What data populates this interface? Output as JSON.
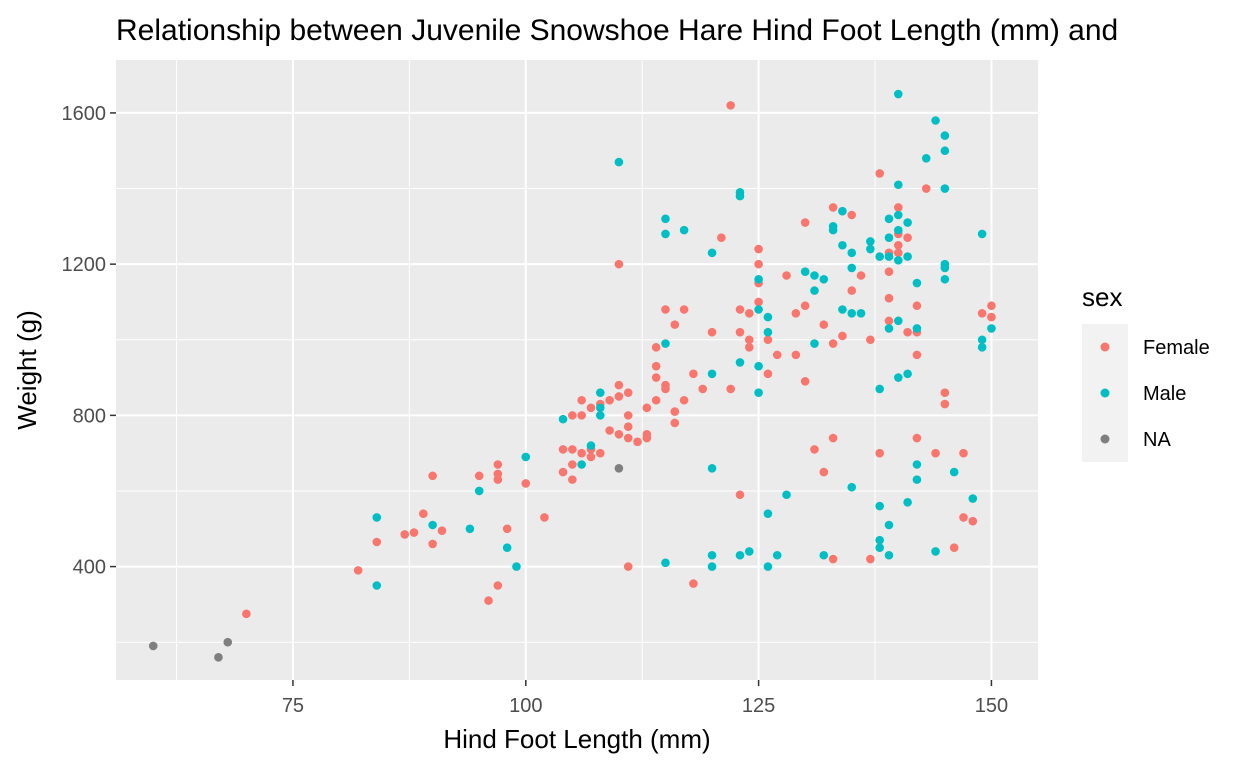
{
  "chart_data": {
    "type": "scatter",
    "title": "Relationship between Juvenile Snowshoe Hare Hind Foot Length (mm) and",
    "xlabel": "Hind Foot Length (mm)",
    "ylabel": "Weight (g)",
    "xlim": [
      56,
      155
    ],
    "ylim": [
      100,
      1740
    ],
    "x_ticks": [
      75,
      100,
      125,
      150
    ],
    "y_ticks": [
      400,
      800,
      1200,
      1600
    ],
    "x_minor": [
      62.5,
      87.5,
      112.5,
      137.5
    ],
    "y_minor": [
      200,
      600,
      1000,
      1400
    ],
    "grid": true,
    "legend": {
      "title": "sex",
      "position": "right"
    },
    "series": [
      {
        "name": "Female",
        "color": "#F8766D",
        "points": [
          [
            70,
            275
          ],
          [
            82,
            390
          ],
          [
            84,
            465
          ],
          [
            87,
            485
          ],
          [
            88,
            490
          ],
          [
            89,
            540
          ],
          [
            90,
            640
          ],
          [
            90,
            460
          ],
          [
            91,
            495
          ],
          [
            95,
            640
          ],
          [
            96,
            310
          ],
          [
            97,
            645
          ],
          [
            97,
            670
          ],
          [
            97,
            630
          ],
          [
            97,
            350
          ],
          [
            98,
            500
          ],
          [
            100,
            620
          ],
          [
            102,
            530
          ],
          [
            104,
            650
          ],
          [
            104,
            710
          ],
          [
            105,
            670
          ],
          [
            105,
            630
          ],
          [
            105,
            710
          ],
          [
            105,
            800
          ],
          [
            106,
            700
          ],
          [
            106,
            800
          ],
          [
            106,
            840
          ],
          [
            107,
            820
          ],
          [
            107,
            710
          ],
          [
            107,
            690
          ],
          [
            108,
            700
          ],
          [
            108,
            830
          ],
          [
            109,
            760
          ],
          [
            109,
            840
          ],
          [
            110,
            880
          ],
          [
            110,
            850
          ],
          [
            110,
            750
          ],
          [
            110,
            1200
          ],
          [
            111,
            800
          ],
          [
            111,
            770
          ],
          [
            111,
            740
          ],
          [
            111,
            860
          ],
          [
            111,
            400
          ],
          [
            112,
            730
          ],
          [
            113,
            740
          ],
          [
            113,
            750
          ],
          [
            113,
            820
          ],
          [
            114,
            980
          ],
          [
            114,
            930
          ],
          [
            114,
            900
          ],
          [
            114,
            840
          ],
          [
            115,
            880
          ],
          [
            115,
            870
          ],
          [
            115,
            1080
          ],
          [
            116,
            780
          ],
          [
            116,
            810
          ],
          [
            116,
            1040
          ],
          [
            117,
            1080
          ],
          [
            117,
            840
          ],
          [
            118,
            910
          ],
          [
            118,
            355
          ],
          [
            119,
            870
          ],
          [
            120,
            1020
          ],
          [
            121,
            1270
          ],
          [
            122,
            870
          ],
          [
            122,
            1620
          ],
          [
            123,
            1080
          ],
          [
            123,
            1020
          ],
          [
            123,
            590
          ],
          [
            124,
            1070
          ],
          [
            124,
            1000
          ],
          [
            124,
            980
          ],
          [
            125,
            1100
          ],
          [
            125,
            1150
          ],
          [
            125,
            1200
          ],
          [
            125,
            1240
          ],
          [
            126,
            910
          ],
          [
            126,
            1000
          ],
          [
            127,
            960
          ],
          [
            128,
            1170
          ],
          [
            129,
            960
          ],
          [
            129,
            1070
          ],
          [
            130,
            1310
          ],
          [
            130,
            1090
          ],
          [
            130,
            890
          ],
          [
            131,
            710
          ],
          [
            132,
            1040
          ],
          [
            132,
            650
          ],
          [
            133,
            1350
          ],
          [
            133,
            990
          ],
          [
            133,
            740
          ],
          [
            133,
            420
          ],
          [
            134,
            1010
          ],
          [
            135,
            1130
          ],
          [
            135,
            1330
          ],
          [
            136,
            1170
          ],
          [
            137,
            1000
          ],
          [
            137,
            420
          ],
          [
            138,
            1440
          ],
          [
            138,
            700
          ],
          [
            139,
            1230
          ],
          [
            139,
            1180
          ],
          [
            139,
            1110
          ],
          [
            139,
            1050
          ],
          [
            140,
            1350
          ],
          [
            140,
            1280
          ],
          [
            140,
            1250
          ],
          [
            140,
            1230
          ],
          [
            141,
            1020
          ],
          [
            141,
            1270
          ],
          [
            142,
            1020
          ],
          [
            142,
            1090
          ],
          [
            142,
            960
          ],
          [
            142,
            740
          ],
          [
            143,
            1400
          ],
          [
            144,
            700
          ],
          [
            145,
            860
          ],
          [
            145,
            830
          ],
          [
            146,
            450
          ],
          [
            147,
            700
          ],
          [
            147,
            530
          ],
          [
            148,
            520
          ],
          [
            149,
            1070
          ],
          [
            150,
            1090
          ],
          [
            150,
            1060
          ]
        ]
      },
      {
        "name": "Male",
        "color": "#00BFC4",
        "points": [
          [
            84,
            530
          ],
          [
            84,
            350
          ],
          [
            90,
            510
          ],
          [
            94,
            500
          ],
          [
            95,
            600
          ],
          [
            98,
            450
          ],
          [
            99,
            400
          ],
          [
            100,
            690
          ],
          [
            104,
            790
          ],
          [
            106,
            670
          ],
          [
            107,
            720
          ],
          [
            108,
            860
          ],
          [
            108,
            800
          ],
          [
            108,
            820
          ],
          [
            110,
            1470
          ],
          [
            115,
            1320
          ],
          [
            115,
            1280
          ],
          [
            115,
            990
          ],
          [
            115,
            410
          ],
          [
            117,
            1290
          ],
          [
            120,
            1230
          ],
          [
            120,
            910
          ],
          [
            120,
            660
          ],
          [
            120,
            430
          ],
          [
            120,
            400
          ],
          [
            123,
            1390
          ],
          [
            123,
            1380
          ],
          [
            123,
            940
          ],
          [
            123,
            430
          ],
          [
            124,
            440
          ],
          [
            125,
            1160
          ],
          [
            125,
            1080
          ],
          [
            125,
            930
          ],
          [
            125,
            860
          ],
          [
            126,
            1060
          ],
          [
            126,
            1020
          ],
          [
            126,
            540
          ],
          [
            126,
            400
          ],
          [
            127,
            430
          ],
          [
            128,
            590
          ],
          [
            130,
            1180
          ],
          [
            131,
            1170
          ],
          [
            131,
            1130
          ],
          [
            131,
            990
          ],
          [
            132,
            1160
          ],
          [
            132,
            430
          ],
          [
            133,
            1300
          ],
          [
            133,
            1290
          ],
          [
            134,
            1340
          ],
          [
            134,
            1250
          ],
          [
            134,
            1080
          ],
          [
            135,
            1230
          ],
          [
            135,
            1190
          ],
          [
            135,
            1070
          ],
          [
            135,
            610
          ],
          [
            136,
            1070
          ],
          [
            137,
            1260
          ],
          [
            137,
            1240
          ],
          [
            138,
            1220
          ],
          [
            138,
            870
          ],
          [
            138,
            560
          ],
          [
            138,
            470
          ],
          [
            138,
            450
          ],
          [
            139,
            1320
          ],
          [
            139,
            1270
          ],
          [
            139,
            1220
          ],
          [
            139,
            1030
          ],
          [
            139,
            510
          ],
          [
            139,
            430
          ],
          [
            140,
            1650
          ],
          [
            140,
            1410
          ],
          [
            140,
            1330
          ],
          [
            140,
            1290
          ],
          [
            140,
            1210
          ],
          [
            140,
            1050
          ],
          [
            140,
            900
          ],
          [
            141,
            1310
          ],
          [
            141,
            1220
          ],
          [
            141,
            910
          ],
          [
            141,
            570
          ],
          [
            142,
            1150
          ],
          [
            142,
            1030
          ],
          [
            142,
            670
          ],
          [
            142,
            630
          ],
          [
            143,
            1480
          ],
          [
            144,
            1580
          ],
          [
            144,
            440
          ],
          [
            145,
            1540
          ],
          [
            145,
            1500
          ],
          [
            145,
            1400
          ],
          [
            145,
            1200
          ],
          [
            145,
            1190
          ],
          [
            145,
            1160
          ],
          [
            146,
            650
          ],
          [
            148,
            580
          ],
          [
            149,
            1280
          ],
          [
            149,
            1000
          ],
          [
            149,
            980
          ],
          [
            150,
            1030
          ]
        ]
      },
      {
        "name": "NA",
        "color": "#7F7F7F",
        "points": [
          [
            60,
            190
          ],
          [
            67,
            160
          ],
          [
            68,
            200
          ],
          [
            110,
            660
          ]
        ]
      }
    ]
  }
}
